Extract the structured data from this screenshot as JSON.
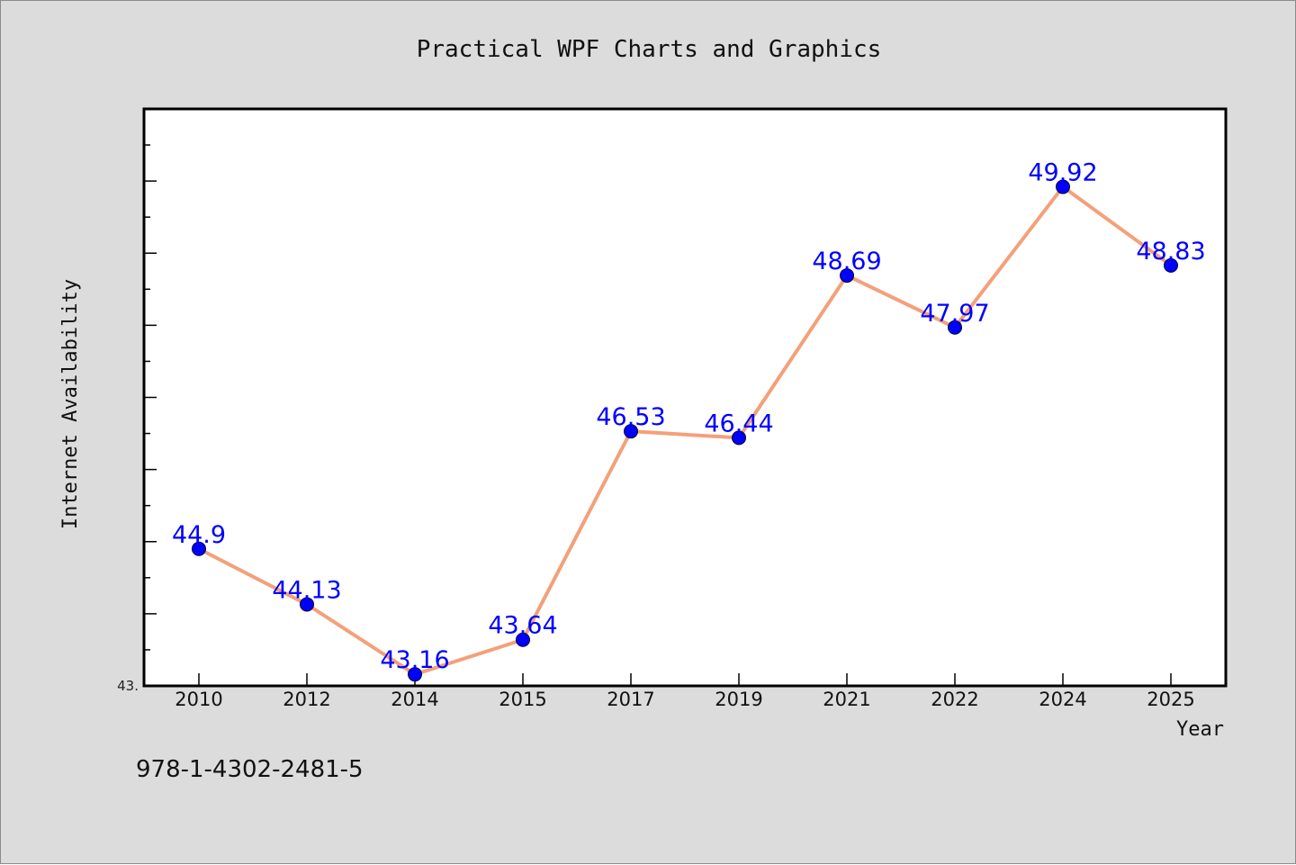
{
  "window": {
    "background": "#dcdcdc",
    "plot_background": "#ffffff",
    "caption": "978-1-4302-2481-5"
  },
  "chart_data": {
    "type": "line",
    "title": "Practical WPF Charts and Graphics",
    "xlabel": "Year",
    "ylabel": "Internet Availability",
    "categories": [
      "2010",
      "2012",
      "2014",
      "2015",
      "2017",
      "2019",
      "2021",
      "2022",
      "2024",
      "2025"
    ],
    "series": [
      {
        "values": [
          44.9,
          44.13,
          43.16,
          43.64,
          46.53,
          46.44,
          48.69,
          47.97,
          49.92,
          48.83
        ],
        "labels": [
          "44.9",
          "44.13",
          "43.16",
          "43.64",
          "46.53",
          "46.44",
          "48.69",
          "47.97",
          "49.92",
          "48.83"
        ],
        "line_color": "#f4a07a",
        "marker_color": "#0000ff",
        "label_color": "#0000ff"
      }
    ],
    "ylim": [
      43,
      51
    ],
    "y_tick_label": "43.",
    "grid": false,
    "legend": "none"
  }
}
